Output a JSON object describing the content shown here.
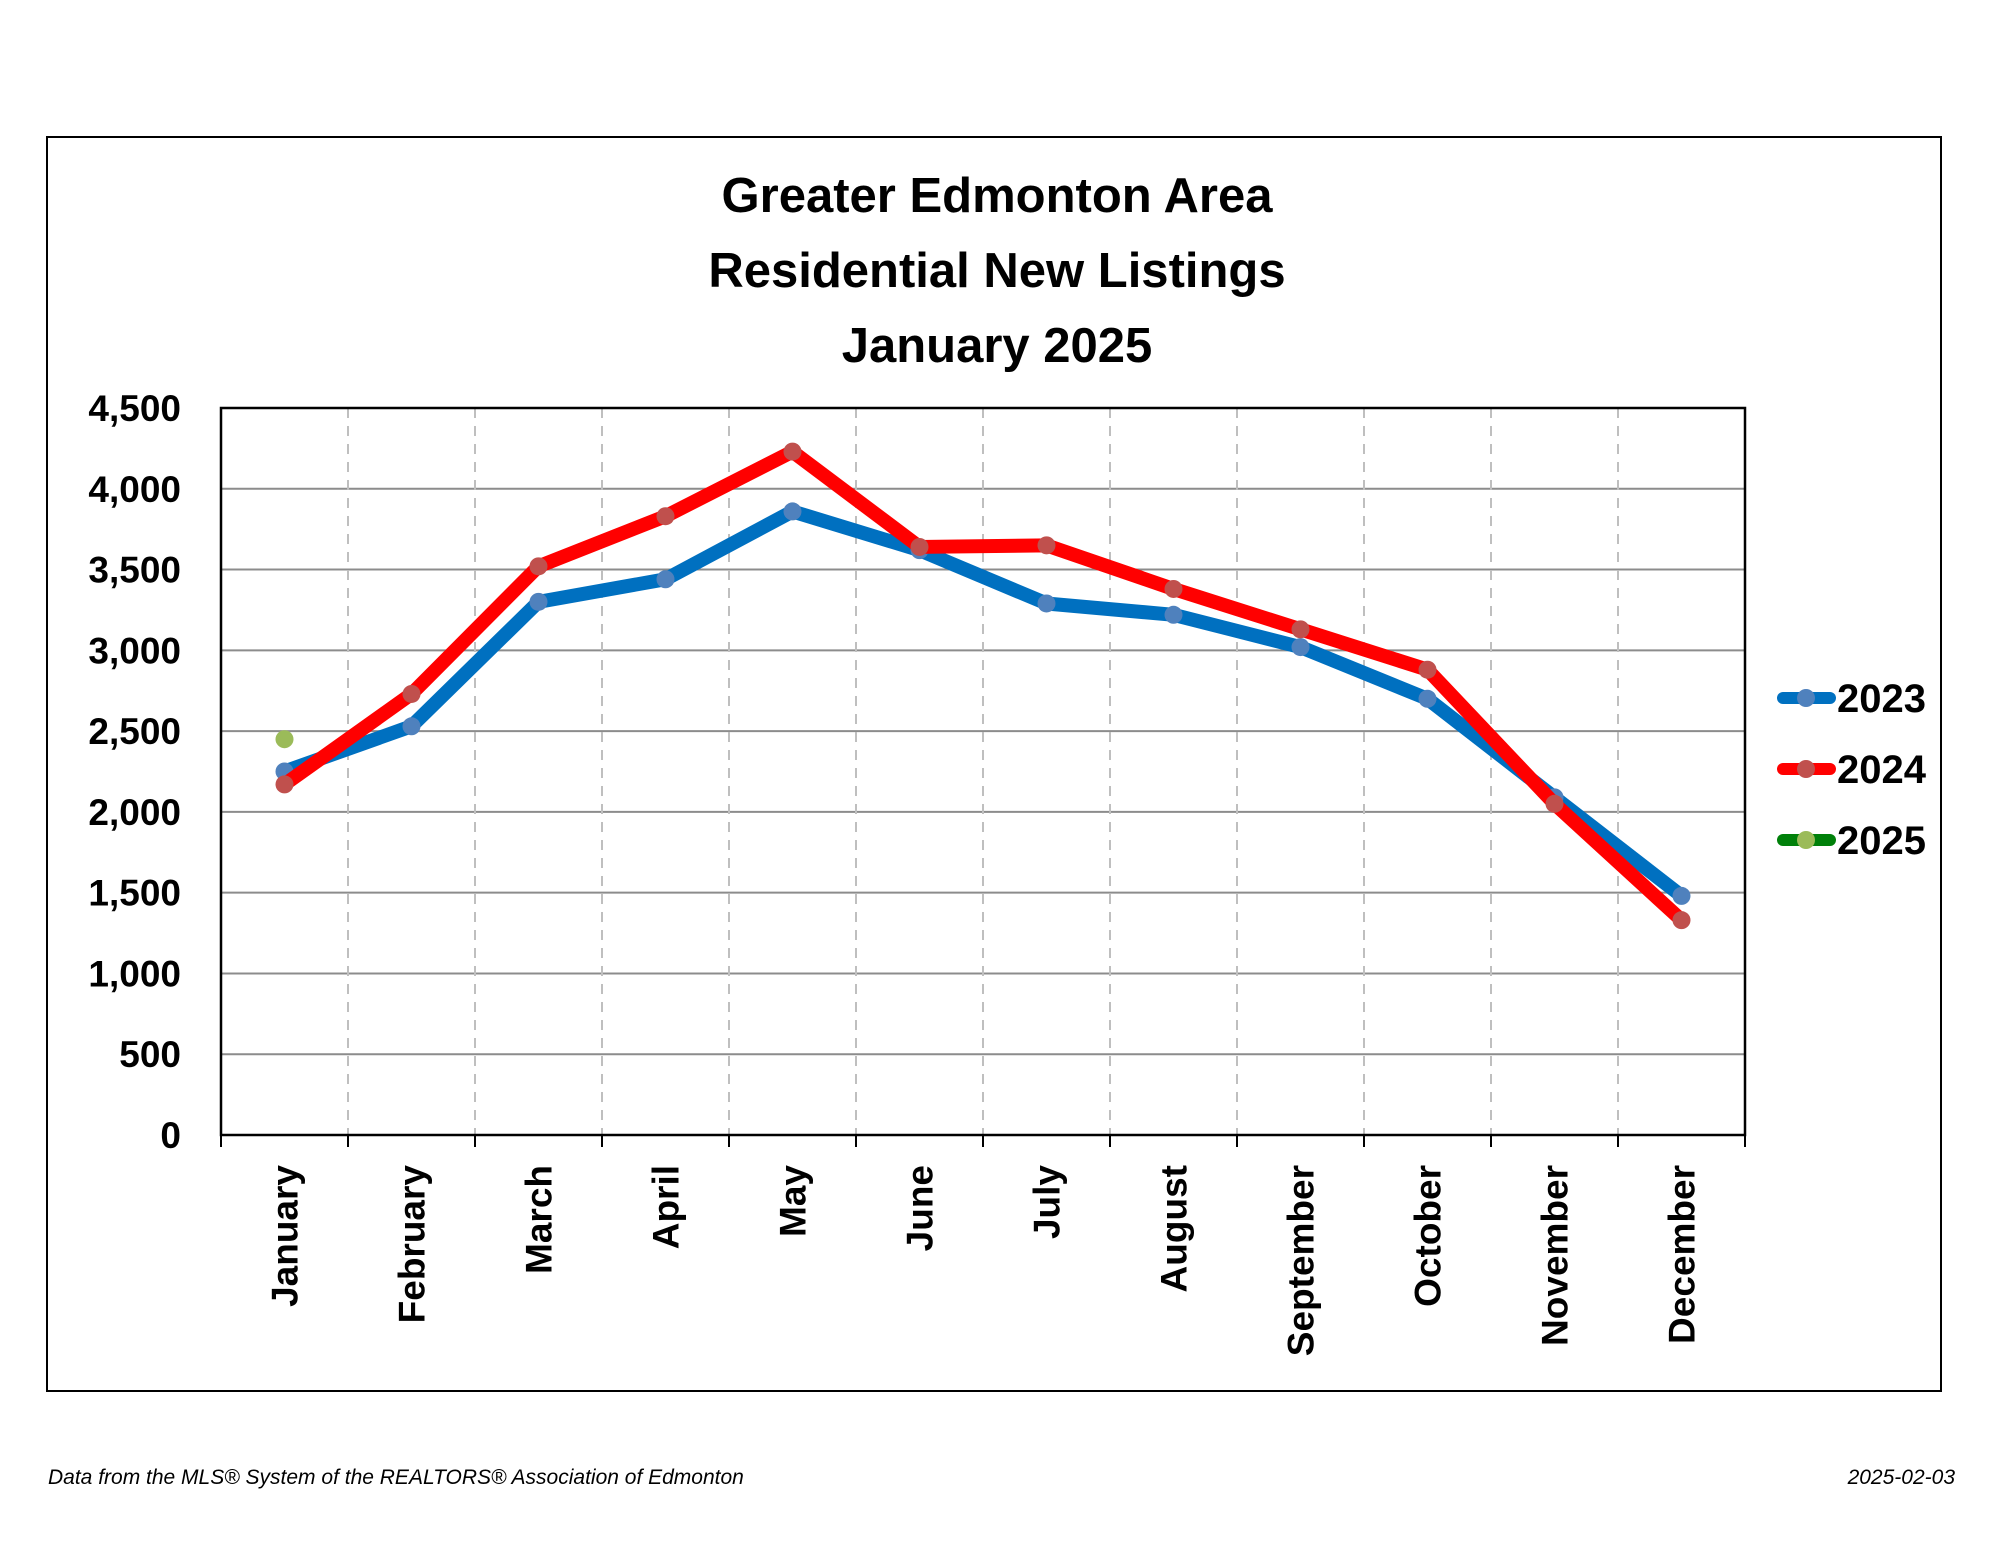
{
  "chart_data": {
    "type": "line",
    "title_lines": [
      "Greater Edmonton Area",
      "Residential New Listings",
      "January 2025"
    ],
    "categories": [
      "January",
      "February",
      "March",
      "April",
      "May",
      "June",
      "July",
      "August",
      "September",
      "October",
      "November",
      "December"
    ],
    "ylim": [
      0,
      4500
    ],
    "yticks": [
      0,
      500,
      1000,
      1500,
      2000,
      2500,
      3000,
      3500,
      4000,
      4500
    ],
    "ytick_labels": [
      "0",
      "500",
      "1,000",
      "1,500",
      "2,000",
      "2,500",
      "3,000",
      "3,500",
      "4,000",
      "4,500"
    ],
    "grid": "horizontal solid, vertical dashed",
    "legend_position": "right",
    "series": [
      {
        "name": "2023",
        "line_color": "#0070c0",
        "marker_color": "#4f81bd",
        "values": [
          2250,
          2530,
          3300,
          3440,
          3860,
          3620,
          3290,
          3220,
          3020,
          2700,
          2090,
          1480
        ]
      },
      {
        "name": "2024",
        "line_color": "#ff0000",
        "marker_color": "#c0504d",
        "values": [
          2170,
          2730,
          3520,
          3830,
          4230,
          3640,
          3650,
          3380,
          3130,
          2880,
          2050,
          1330
        ]
      },
      {
        "name": "2025",
        "line_color": "#00800a",
        "marker_color": "#9bbb59",
        "values": [
          2450,
          null,
          null,
          null,
          null,
          null,
          null,
          null,
          null,
          null,
          null,
          null
        ]
      }
    ]
  },
  "footer": {
    "source": "Data from the MLS® System of the REALTORS® Association of Edmonton",
    "date": "2025-02-03"
  }
}
